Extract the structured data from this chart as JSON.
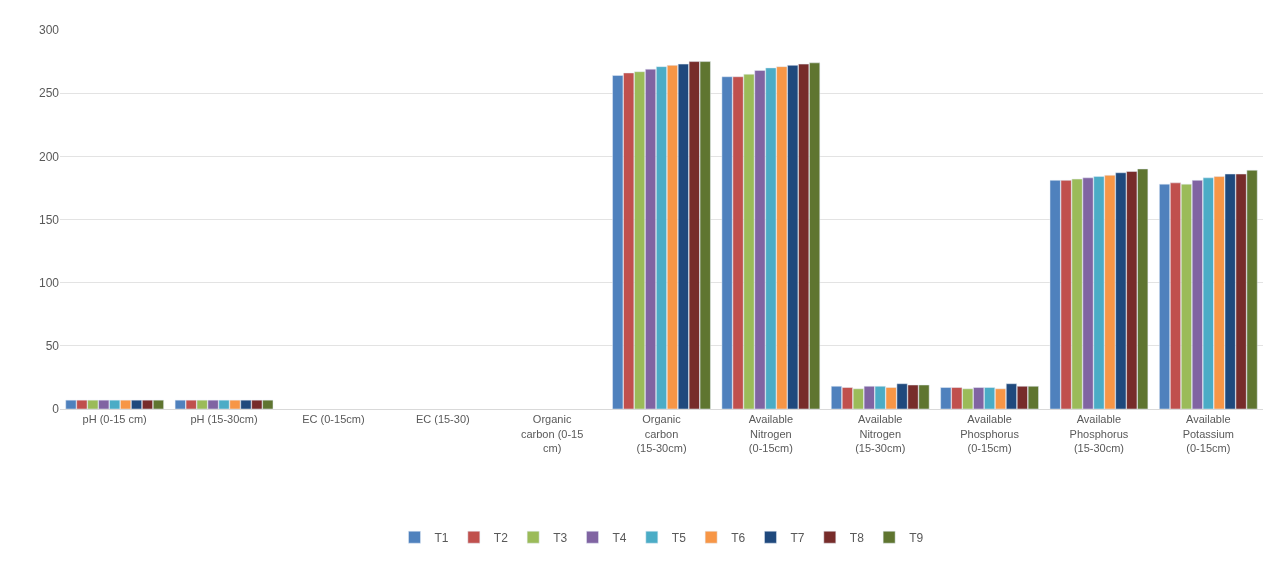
{
  "chart_data": {
    "type": "bar",
    "categories": [
      "pH (0-15 cm)",
      "pH (15-30cm)",
      "EC (0-15cm)",
      "EC (15-30)",
      "Organic carbon (0-15 cm)",
      "Organic carbon (15-30cm)",
      "Available Nitrogen (0-15cm)",
      "Available Nitrogen (15-30cm)",
      "Available Phosphorus (0-15cm)",
      "Available Phosphorus (15-30cm)",
      "Available Potassium (0-15cm)"
    ],
    "series": [
      {
        "name": "T1",
        "color": "#4f81bd",
        "values": [
          7,
          7,
          null,
          null,
          null,
          264,
          263,
          18,
          17,
          181,
          178
        ]
      },
      {
        "name": "T2",
        "color": "#c0504d",
        "values": [
          7,
          7,
          null,
          null,
          null,
          266,
          263,
          17,
          17,
          181,
          179
        ]
      },
      {
        "name": "T3",
        "color": "#9bbb59",
        "values": [
          7,
          7,
          null,
          null,
          null,
          267,
          265,
          16,
          16,
          182,
          178
        ]
      },
      {
        "name": "T4",
        "color": "#8064a2",
        "values": [
          7,
          7,
          null,
          null,
          null,
          269,
          268,
          18,
          17,
          183,
          181
        ]
      },
      {
        "name": "T5",
        "color": "#4bacc6",
        "values": [
          7,
          7,
          null,
          null,
          null,
          271,
          270,
          18,
          17,
          184,
          183
        ]
      },
      {
        "name": "T6",
        "color": "#f79646",
        "values": [
          7,
          7,
          null,
          null,
          null,
          272,
          271,
          17,
          16,
          185,
          184
        ]
      },
      {
        "name": "T7",
        "color": "#1f497d",
        "values": [
          7,
          7,
          null,
          null,
          null,
          273,
          272,
          20,
          20,
          187,
          186
        ]
      },
      {
        "name": "T8",
        "color": "#772c2a",
        "values": [
          7,
          7,
          null,
          null,
          null,
          275,
          273,
          19,
          18,
          188,
          186
        ]
      },
      {
        "name": "T9",
        "color": "#5f7530",
        "values": [
          7,
          7,
          null,
          null,
          null,
          275,
          274,
          19,
          18,
          190,
          189
        ]
      }
    ],
    "ylim": [
      0,
      300
    ],
    "yticks": [
      0,
      50,
      100,
      150,
      200,
      250,
      300
    ],
    "grid": "y",
    "legend": "bottom"
  }
}
